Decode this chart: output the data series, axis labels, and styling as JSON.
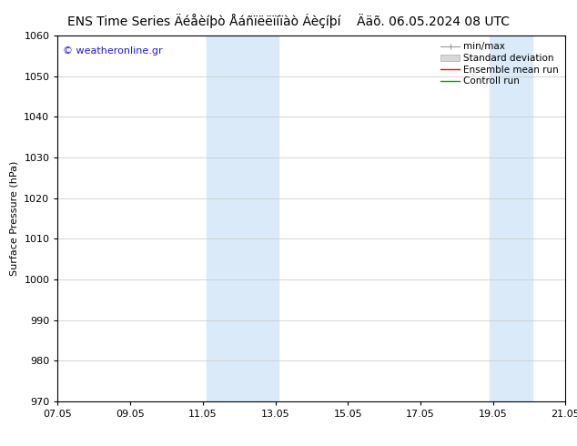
{
  "title_left": "ENS Time Series Äéåèíþò Åáñïëëïíïàò Áèçíþí",
  "title_right": "Ääõ. 06.05.2024 08 UTC",
  "ylabel": "Surface Pressure (hPa)",
  "ylim": [
    970,
    1060
  ],
  "yticks": [
    970,
    980,
    990,
    1000,
    1010,
    1020,
    1030,
    1040,
    1050,
    1060
  ],
  "xticks_labels": [
    "07.05",
    "09.05",
    "11.05",
    "13.05",
    "15.05",
    "17.05",
    "19.05",
    "21.05"
  ],
  "xtick_values": [
    0,
    2,
    4,
    6,
    8,
    10,
    12,
    14
  ],
  "xlim": [
    0,
    14
  ],
  "shade_bands": [
    {
      "x_start": 4.1,
      "x_end": 6.1,
      "color": "#daeaf8"
    },
    {
      "x_start": 11.9,
      "x_end": 13.1,
      "color": "#daeaf8"
    }
  ],
  "watermark": "© weatheronline.gr",
  "watermark_color": "#1a1aff",
  "legend_labels": [
    "min/max",
    "Standard deviation",
    "Ensemble mean run",
    "Controll run"
  ],
  "legend_colors": [
    "#999999",
    "#bbbbbb",
    "#ff0000",
    "#00aa00"
  ],
  "bg_color": "#ffffff",
  "plot_bg_color": "#ffffff",
  "grid_color": "#c8c8c8",
  "title_fontsize": 10,
  "tick_fontsize": 8,
  "ylabel_fontsize": 8,
  "legend_fontsize": 7.5
}
